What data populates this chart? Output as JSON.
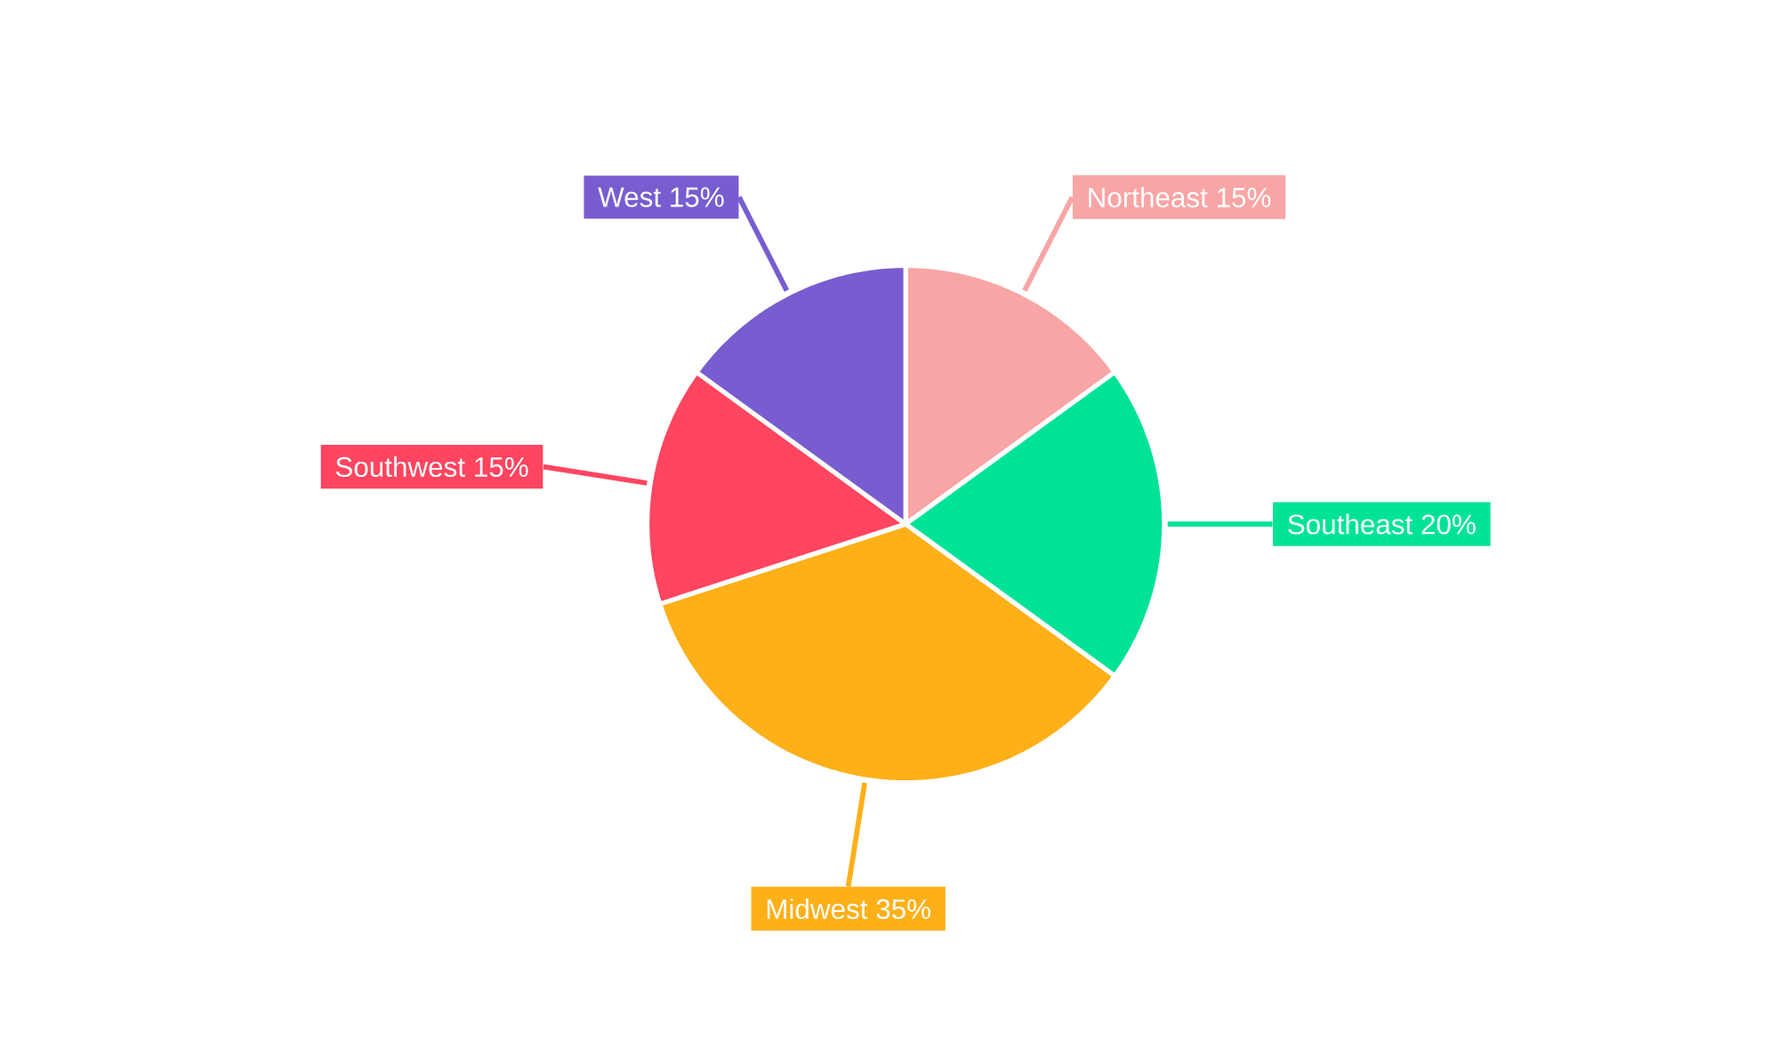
{
  "chart_data": {
    "type": "pie",
    "categories": [
      "Northeast",
      "Southeast",
      "Midwest",
      "Southwest",
      "West"
    ],
    "values": [
      15,
      20,
      35,
      15,
      15
    ],
    "value_labels": [
      "15%",
      "20%",
      "35%",
      "15%",
      "15%"
    ],
    "colors": [
      "#f8a5a5",
      "#00e396",
      "#feb019",
      "#ff4560",
      "#775dd0"
    ]
  }
}
